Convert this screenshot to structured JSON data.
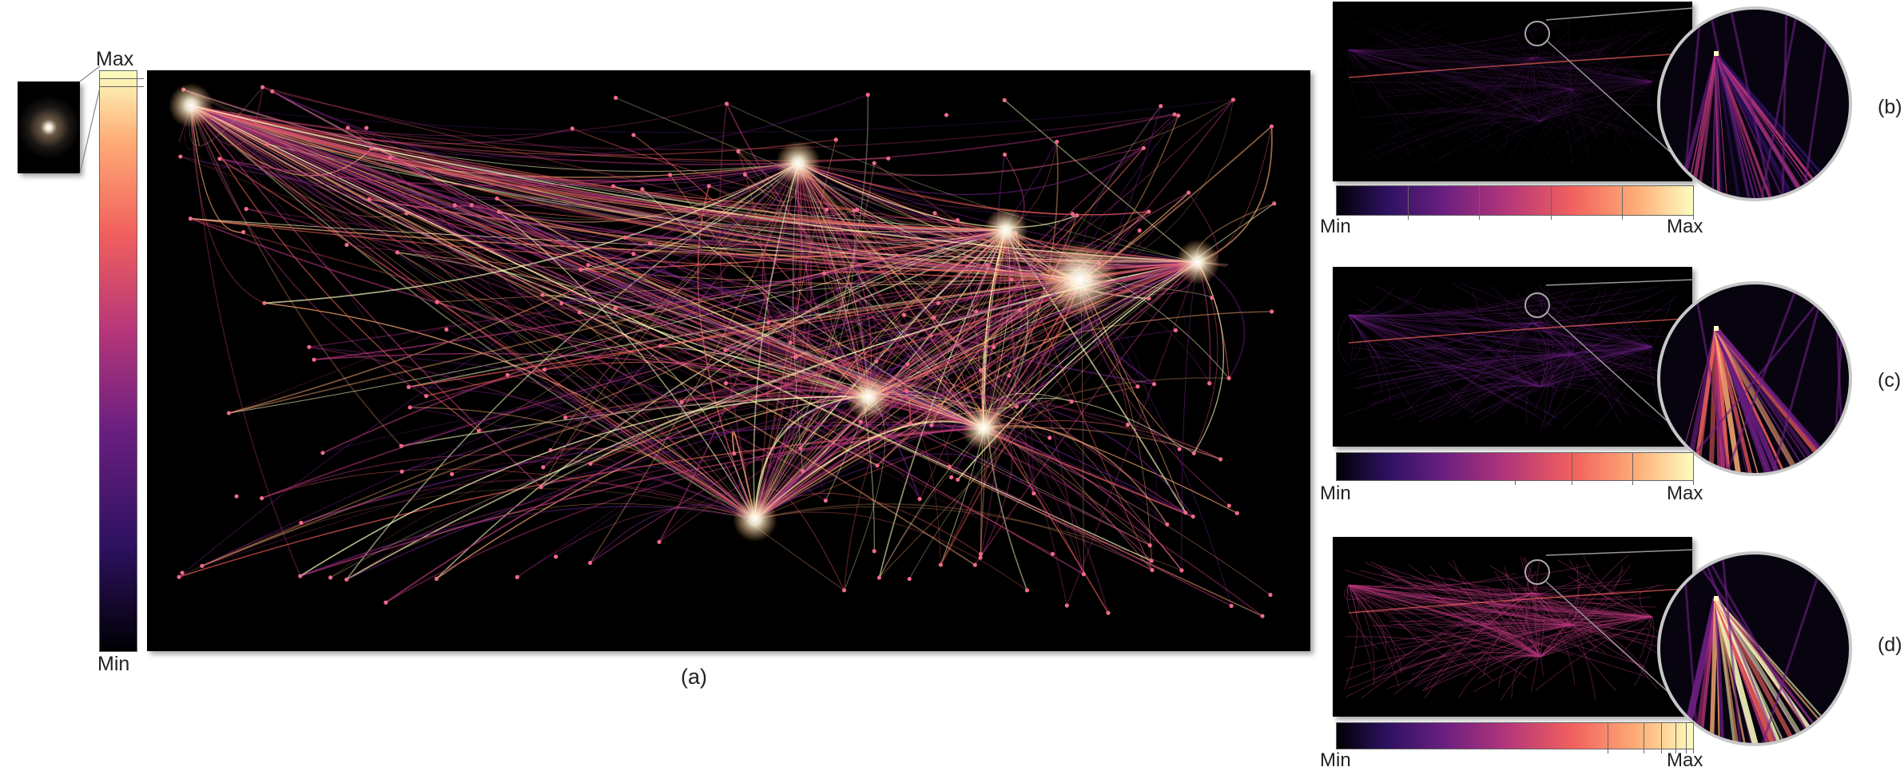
{
  "main_panel": {
    "caption": "(a)",
    "colorbar": {
      "max_label": "Max",
      "min_label": "Min"
    }
  },
  "side_panels": [
    {
      "caption": "(b)",
      "min_label": "Min",
      "max_label": "Max",
      "ticks": [
        0.2,
        0.4,
        0.6,
        0.8,
        1.0
      ]
    },
    {
      "caption": "(c)",
      "min_label": "Min",
      "max_label": "Max",
      "ticks": [
        0.5,
        0.66,
        0.83,
        1.0
      ]
    },
    {
      "caption": "(d)",
      "min_label": "Min",
      "max_label": "Max",
      "ticks": [
        0.76,
        0.86,
        0.91,
        0.95,
        0.98,
        1.0
      ]
    }
  ],
  "colors": {
    "background": "#000000",
    "colormap": [
      "#000004",
      "#2d1160",
      "#6a1f80",
      "#b5367a",
      "#f1605d",
      "#feac76",
      "#fcfdbf"
    ]
  }
}
